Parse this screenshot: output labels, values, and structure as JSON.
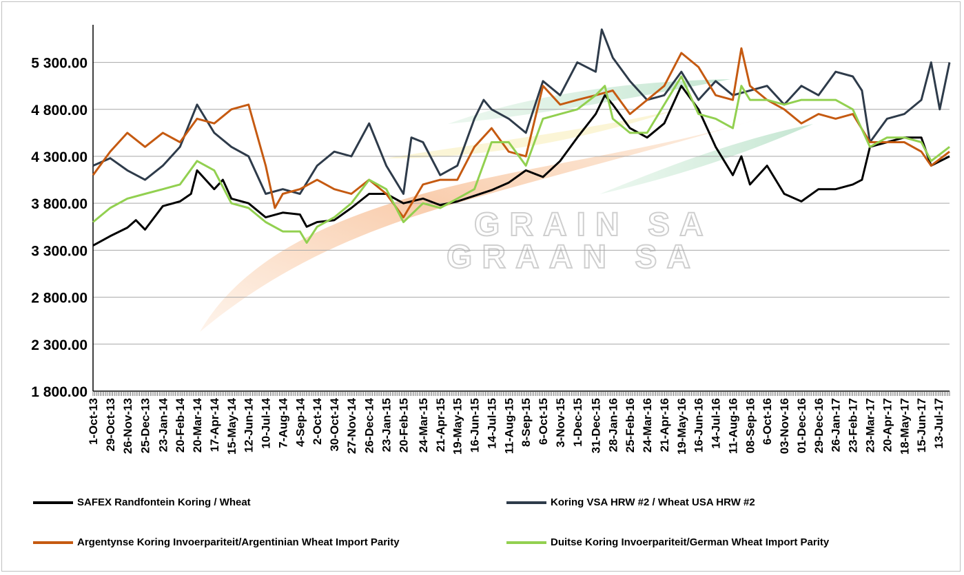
{
  "chart_data": {
    "type": "line",
    "title": "",
    "xlabel": "",
    "ylabel": "",
    "ylim": [
      1800,
      5700
    ],
    "y_ticks": [
      "1 800.00",
      "2 300.00",
      "2 800.00",
      "3 300.00",
      "3 800.00",
      "4 300.00",
      "4 800.00",
      "5 300.00"
    ],
    "y_tick_values": [
      1800,
      2300,
      2800,
      3300,
      3800,
      4300,
      4800,
      5300
    ],
    "grid": "horizontal",
    "legend_position": "bottom",
    "watermark": [
      "GRAIN SA",
      "GRAAN SA"
    ],
    "x_range": [
      "2013-10-01",
      "2017-07-31"
    ],
    "x_tick_labels": [
      "1-Oct-13",
      "29-Oct-13",
      "26-Nov-13",
      "25-Dec-13",
      "23-Jan-14",
      "20-Feb-14",
      "20-Mar-14",
      "17-Apr-14",
      "15-May-14",
      "12-Jun-14",
      "10-Jul-14",
      "7-Aug-14",
      "4-Sep-14",
      "2-Oct-14",
      "30-Oct-14",
      "27-Nov-14",
      "26-Dec-14",
      "23-Jan-15",
      "20-Feb-15",
      "24-Mar-15",
      "21-Apr-15",
      "19-May-15",
      "16-Jun-15",
      "14-Jul-15",
      "11-Aug-15",
      "8-Sep-15",
      "6-Oct-15",
      "3-Nov-15",
      "1-Dec-15",
      "31-Dec-15",
      "28-Jan-16",
      "25-Feb-16",
      "24-Mar-16",
      "21-Apr-16",
      "19-May-16",
      "16-Jun-16",
      "14-Jul-16",
      "11-Aug-16",
      "08-Sep-16",
      "6-Oct-16",
      "03-Nov-16",
      "01-Dec-16",
      "29-Dec-16",
      "26-Jan-17",
      "23-Feb-17",
      "23-Mar-17",
      "20-Apr-17",
      "18-May-17",
      "15-Jun-17",
      "13-Jul-17"
    ],
    "x_tick_dates": [
      "2013-10-01",
      "2013-10-29",
      "2013-11-26",
      "2013-12-25",
      "2014-01-23",
      "2014-02-20",
      "2014-03-20",
      "2014-04-17",
      "2014-05-15",
      "2014-06-12",
      "2014-07-10",
      "2014-08-07",
      "2014-09-04",
      "2014-10-02",
      "2014-10-30",
      "2014-11-27",
      "2014-12-26",
      "2015-01-23",
      "2015-02-20",
      "2015-03-24",
      "2015-04-21",
      "2015-05-19",
      "2015-06-16",
      "2015-07-14",
      "2015-08-11",
      "2015-09-08",
      "2015-10-06",
      "2015-11-03",
      "2015-12-01",
      "2015-12-31",
      "2016-01-28",
      "2016-02-25",
      "2016-03-24",
      "2016-04-21",
      "2016-05-19",
      "2016-06-16",
      "2016-07-14",
      "2016-08-11",
      "2016-09-08",
      "2016-10-06",
      "2016-11-03",
      "2016-12-01",
      "2016-12-29",
      "2017-01-26",
      "2017-02-23",
      "2017-03-23",
      "2017-04-20",
      "2017-05-18",
      "2017-06-15",
      "2017-07-13"
    ],
    "series": [
      {
        "name": "SAFEX  Randfontein Koring / Wheat",
        "color": "#000000",
        "points": [
          [
            "2013-10-01",
            3350
          ],
          [
            "2013-10-29",
            3450
          ],
          [
            "2013-11-26",
            3540
          ],
          [
            "2013-12-10",
            3620
          ],
          [
            "2013-12-25",
            3520
          ],
          [
            "2014-01-23",
            3770
          ],
          [
            "2014-02-20",
            3820
          ],
          [
            "2014-03-10",
            3900
          ],
          [
            "2014-03-20",
            4150
          ],
          [
            "2014-04-17",
            3950
          ],
          [
            "2014-05-01",
            4050
          ],
          [
            "2014-05-15",
            3850
          ],
          [
            "2014-06-12",
            3800
          ],
          [
            "2014-07-10",
            3650
          ],
          [
            "2014-08-07",
            3700
          ],
          [
            "2014-09-04",
            3680
          ],
          [
            "2014-09-15",
            3550
          ],
          [
            "2014-10-02",
            3600
          ],
          [
            "2014-10-30",
            3620
          ],
          [
            "2014-11-27",
            3750
          ],
          [
            "2014-12-26",
            3900
          ],
          [
            "2015-01-23",
            3900
          ],
          [
            "2015-02-20",
            3800
          ],
          [
            "2015-03-24",
            3850
          ],
          [
            "2015-04-21",
            3780
          ],
          [
            "2015-05-19",
            3820
          ],
          [
            "2015-06-16",
            3880
          ],
          [
            "2015-07-14",
            3940
          ],
          [
            "2015-08-11",
            4020
          ],
          [
            "2015-09-08",
            4150
          ],
          [
            "2015-10-06",
            4080
          ],
          [
            "2015-11-03",
            4250
          ],
          [
            "2015-12-01",
            4500
          ],
          [
            "2015-12-31",
            4750
          ],
          [
            "2016-01-15",
            4950
          ],
          [
            "2016-01-28",
            4850
          ],
          [
            "2016-02-25",
            4600
          ],
          [
            "2016-03-24",
            4500
          ],
          [
            "2016-04-21",
            4650
          ],
          [
            "2016-05-19",
            5050
          ],
          [
            "2016-06-16",
            4800
          ],
          [
            "2016-07-14",
            4400
          ],
          [
            "2016-08-11",
            4100
          ],
          [
            "2016-08-25",
            4300
          ],
          [
            "2016-09-08",
            4000
          ],
          [
            "2016-10-06",
            4200
          ],
          [
            "2016-11-03",
            3900
          ],
          [
            "2016-12-01",
            3820
          ],
          [
            "2016-12-29",
            3950
          ],
          [
            "2017-01-26",
            3950
          ],
          [
            "2017-02-23",
            4000
          ],
          [
            "2017-03-10",
            4050
          ],
          [
            "2017-03-23",
            4400
          ],
          [
            "2017-04-20",
            4450
          ],
          [
            "2017-05-18",
            4500
          ],
          [
            "2017-06-15",
            4500
          ],
          [
            "2017-07-01",
            4200
          ],
          [
            "2017-07-31",
            4300
          ]
        ]
      },
      {
        "name": "Koring VSA HRW #2 / Wheat USA HRW #2",
        "color": "#2e3b4a",
        "points": [
          [
            "2013-10-01",
            4200
          ],
          [
            "2013-10-29",
            4280
          ],
          [
            "2013-11-26",
            4150
          ],
          [
            "2013-12-25",
            4050
          ],
          [
            "2014-01-23",
            4200
          ],
          [
            "2014-02-20",
            4400
          ],
          [
            "2014-03-20",
            4850
          ],
          [
            "2014-04-17",
            4550
          ],
          [
            "2014-05-15",
            4400
          ],
          [
            "2014-06-12",
            4300
          ],
          [
            "2014-07-10",
            3900
          ],
          [
            "2014-08-07",
            3950
          ],
          [
            "2014-09-04",
            3900
          ],
          [
            "2014-10-02",
            4200
          ],
          [
            "2014-10-30",
            4350
          ],
          [
            "2014-11-27",
            4300
          ],
          [
            "2014-12-26",
            4650
          ],
          [
            "2015-01-23",
            4200
          ],
          [
            "2015-02-20",
            3900
          ],
          [
            "2015-03-05",
            4500
          ],
          [
            "2015-03-24",
            4450
          ],
          [
            "2015-04-21",
            4100
          ],
          [
            "2015-05-19",
            4200
          ],
          [
            "2015-06-16",
            4700
          ],
          [
            "2015-07-01",
            4900
          ],
          [
            "2015-07-14",
            4800
          ],
          [
            "2015-08-11",
            4700
          ],
          [
            "2015-09-08",
            4550
          ],
          [
            "2015-10-06",
            5100
          ],
          [
            "2015-11-03",
            4950
          ],
          [
            "2015-12-01",
            5300
          ],
          [
            "2015-12-31",
            5200
          ],
          [
            "2016-01-10",
            5650
          ],
          [
            "2016-01-28",
            5350
          ],
          [
            "2016-02-25",
            5100
          ],
          [
            "2016-03-24",
            4900
          ],
          [
            "2016-04-21",
            4950
          ],
          [
            "2016-05-19",
            5200
          ],
          [
            "2016-06-16",
            4900
          ],
          [
            "2016-07-14",
            5100
          ],
          [
            "2016-08-11",
            4950
          ],
          [
            "2016-09-08",
            5000
          ],
          [
            "2016-10-06",
            5050
          ],
          [
            "2016-11-03",
            4850
          ],
          [
            "2016-12-01",
            5050
          ],
          [
            "2016-12-29",
            4950
          ],
          [
            "2017-01-26",
            5200
          ],
          [
            "2017-02-23",
            5150
          ],
          [
            "2017-03-10",
            5000
          ],
          [
            "2017-03-23",
            4450
          ],
          [
            "2017-04-20",
            4700
          ],
          [
            "2017-05-18",
            4750
          ],
          [
            "2017-06-15",
            4900
          ],
          [
            "2017-07-01",
            5300
          ],
          [
            "2017-07-15",
            4800
          ],
          [
            "2017-07-31",
            5300
          ]
        ]
      },
      {
        "name": "Argentynse Koring Invoerpariteit/Argentinian Wheat Import Parity",
        "color": "#c55a11",
        "points": [
          [
            "2013-10-01",
            4100
          ],
          [
            "2013-10-29",
            4350
          ],
          [
            "2013-11-26",
            4550
          ],
          [
            "2013-12-25",
            4400
          ],
          [
            "2014-01-23",
            4550
          ],
          [
            "2014-02-20",
            4450
          ],
          [
            "2014-03-20",
            4700
          ],
          [
            "2014-04-17",
            4650
          ],
          [
            "2014-05-15",
            4800
          ],
          [
            "2014-06-12",
            4850
          ],
          [
            "2014-07-10",
            4200
          ],
          [
            "2014-07-25",
            3750
          ],
          [
            "2014-08-07",
            3900
          ],
          [
            "2014-09-04",
            3950
          ],
          [
            "2014-10-02",
            4050
          ],
          [
            "2014-10-30",
            3950
          ],
          [
            "2014-11-27",
            3900
          ],
          [
            "2014-12-26",
            4050
          ],
          [
            "2015-01-23",
            3900
          ],
          [
            "2015-02-20",
            3650
          ],
          [
            "2015-03-24",
            4000
          ],
          [
            "2015-04-21",
            4050
          ],
          [
            "2015-05-19",
            4050
          ],
          [
            "2015-06-16",
            4400
          ],
          [
            "2015-07-14",
            4600
          ],
          [
            "2015-08-11",
            4350
          ],
          [
            "2015-09-08",
            4300
          ],
          [
            "2015-10-06",
            5050
          ],
          [
            "2015-11-03",
            4850
          ],
          [
            "2015-12-01",
            4900
          ],
          [
            "2015-12-31",
            4950
          ],
          [
            "2016-01-28",
            5000
          ],
          [
            "2016-02-25",
            4750
          ],
          [
            "2016-03-24",
            4900
          ],
          [
            "2016-04-21",
            5050
          ],
          [
            "2016-05-19",
            5400
          ],
          [
            "2016-06-16",
            5250
          ],
          [
            "2016-07-14",
            4950
          ],
          [
            "2016-08-11",
            4900
          ],
          [
            "2016-08-25",
            5450
          ],
          [
            "2016-09-08",
            5050
          ],
          [
            "2016-10-06",
            4900
          ],
          [
            "2016-11-03",
            4800
          ],
          [
            "2016-12-01",
            4650
          ],
          [
            "2016-12-29",
            4750
          ],
          [
            "2017-01-26",
            4700
          ],
          [
            "2017-02-23",
            4750
          ],
          [
            "2017-03-23",
            4450
          ],
          [
            "2017-04-20",
            4450
          ],
          [
            "2017-05-18",
            4450
          ],
          [
            "2017-06-15",
            4350
          ],
          [
            "2017-07-01",
            4200
          ],
          [
            "2017-07-31",
            4350
          ]
        ]
      },
      {
        "name": "Duitse Koring Invoerpariteit/German Wheat Import Parity",
        "color": "#92d050",
        "points": [
          [
            "2013-10-01",
            3600
          ],
          [
            "2013-10-29",
            3750
          ],
          [
            "2013-11-26",
            3850
          ],
          [
            "2013-12-25",
            3900
          ],
          [
            "2014-01-23",
            3950
          ],
          [
            "2014-02-20",
            4000
          ],
          [
            "2014-03-20",
            4250
          ],
          [
            "2014-04-17",
            4150
          ],
          [
            "2014-05-15",
            3800
          ],
          [
            "2014-06-12",
            3750
          ],
          [
            "2014-07-10",
            3600
          ],
          [
            "2014-08-07",
            3500
          ],
          [
            "2014-09-04",
            3500
          ],
          [
            "2014-09-15",
            3380
          ],
          [
            "2014-10-02",
            3550
          ],
          [
            "2014-10-30",
            3650
          ],
          [
            "2014-11-27",
            3800
          ],
          [
            "2014-12-26",
            4050
          ],
          [
            "2015-01-23",
            3950
          ],
          [
            "2015-02-20",
            3600
          ],
          [
            "2015-03-24",
            3800
          ],
          [
            "2015-04-21",
            3750
          ],
          [
            "2015-05-19",
            3850
          ],
          [
            "2015-06-16",
            3950
          ],
          [
            "2015-07-14",
            4450
          ],
          [
            "2015-08-11",
            4450
          ],
          [
            "2015-09-08",
            4200
          ],
          [
            "2015-10-06",
            4700
          ],
          [
            "2015-11-03",
            4750
          ],
          [
            "2015-12-01",
            4800
          ],
          [
            "2015-12-31",
            4950
          ],
          [
            "2016-01-15",
            5050
          ],
          [
            "2016-01-28",
            4700
          ],
          [
            "2016-02-25",
            4550
          ],
          [
            "2016-03-24",
            4550
          ],
          [
            "2016-04-21",
            4850
          ],
          [
            "2016-05-19",
            5150
          ],
          [
            "2016-06-16",
            4750
          ],
          [
            "2016-07-14",
            4700
          ],
          [
            "2016-08-11",
            4600
          ],
          [
            "2016-08-25",
            5050
          ],
          [
            "2016-09-08",
            4900
          ],
          [
            "2016-10-06",
            4900
          ],
          [
            "2016-11-03",
            4850
          ],
          [
            "2016-12-01",
            4900
          ],
          [
            "2016-12-29",
            4900
          ],
          [
            "2017-01-26",
            4900
          ],
          [
            "2017-02-23",
            4800
          ],
          [
            "2017-03-23",
            4400
          ],
          [
            "2017-04-20",
            4500
          ],
          [
            "2017-05-18",
            4500
          ],
          [
            "2017-06-15",
            4450
          ],
          [
            "2017-07-01",
            4250
          ],
          [
            "2017-07-31",
            4400
          ]
        ]
      }
    ]
  }
}
